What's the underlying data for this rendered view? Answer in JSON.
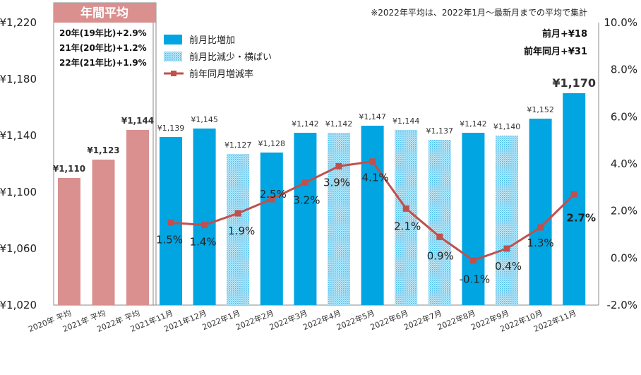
{
  "chart_data": {
    "type": "bar",
    "categories": [
      "2020年 平均",
      "2021年 平均",
      "2022年 平均",
      "2021年11月",
      "2021年12月",
      "2022年1月",
      "2022年2月",
      "2022年3月",
      "2022年4月",
      "2022年5月",
      "2022年6月",
      "2022年7月",
      "2022年8月",
      "2022年9月",
      "2022年10月",
      "2022年11月"
    ],
    "bar_values": [
      1110,
      1123,
      1144,
      1139,
      1145,
      1127,
      1128,
      1142,
      1142,
      1147,
      1144,
      1137,
      1142,
      1140,
      1152,
      1170
    ],
    "bar_labels": [
      "¥1,110",
      "¥1,123",
      "¥1,144",
      "¥1,139",
      "¥1,145",
      "¥1,127",
      "¥1,128",
      "¥1,142",
      "¥1,142",
      "¥1,147",
      "¥1,144",
      "¥1,137",
      "¥1,142",
      "¥1,140",
      "¥1,152",
      "¥1,170"
    ],
    "bar_kinds": [
      "avg",
      "avg",
      "avg",
      "up",
      "up",
      "down",
      "up",
      "up",
      "down",
      "up",
      "down",
      "down",
      "up",
      "down",
      "up",
      "up"
    ],
    "line_series": {
      "name": "前年同月増減率",
      "values": [
        1.5,
        1.4,
        1.9,
        2.5,
        3.2,
        3.9,
        4.1,
        2.1,
        0.9,
        -0.1,
        0.4,
        1.3,
        2.7
      ],
      "labels": [
        "1.5%",
        "1.4%",
        "1.9%",
        "2.5%",
        "3.2%",
        "3.9%",
        "4.1%",
        "2.1%",
        "0.9%",
        "-0.1%",
        "0.4%",
        "1.3%",
        "2.7%"
      ]
    },
    "y_left": {
      "min": 1020,
      "max": 1220,
      "ticks": [
        "¥1,020",
        "¥1,060",
        "¥1,100",
        "¥1,140",
        "¥1,180",
        "¥1,220"
      ]
    },
    "y_right": {
      "min": -2.0,
      "max": 10.0,
      "ticks": [
        "-2.0%",
        "0.0%",
        "2.0%",
        "4.0%",
        "6.0%",
        "8.0%",
        "10.0%"
      ]
    },
    "legend": [
      "前月比増加",
      "前月比減少・横ばい",
      "前年同月増減率"
    ],
    "annual_box": {
      "title": "年間平均",
      "notes": [
        "20年(19年比)+2.9%",
        "21年(20年比)+1.2%",
        "22年(21年比)+1.9%"
      ]
    },
    "footnote": "※2022年平均は、2022年1月～最新月までの平均で集計",
    "stats": [
      "前月+¥18",
      "前年同月+¥31"
    ],
    "colors": {
      "avg": "#d9908f",
      "up": "#00a5e2",
      "down": "#5fc3ee",
      "line": "#c0504d",
      "negative": "#e0405a"
    }
  }
}
